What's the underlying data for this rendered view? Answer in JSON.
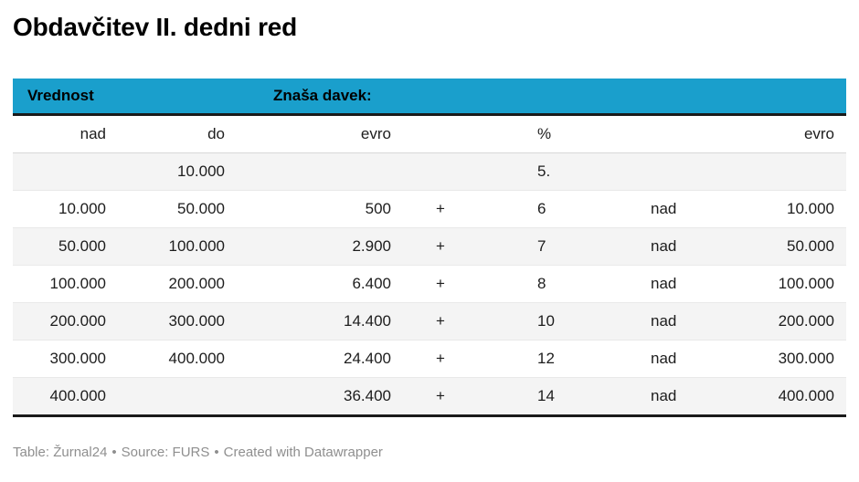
{
  "chart_data": {
    "type": "table",
    "title": "Obdavčitev II. dedni red",
    "group_headers": [
      {
        "label": "Vrednost",
        "colspan": 2
      },
      {
        "label": "Znaša davek:",
        "colspan": 5
      }
    ],
    "columns": [
      "nad",
      "do",
      "evro",
      "",
      "%",
      "",
      "evro"
    ],
    "rows": [
      [
        "",
        "10.000",
        "",
        "",
        "5.",
        "",
        ""
      ],
      [
        "10.000",
        "50.000",
        "500",
        "+",
        "6",
        "nad",
        "10.000"
      ],
      [
        "50.000",
        "100.000",
        "2.900",
        "+",
        "7",
        "nad",
        "50.000"
      ],
      [
        "100.000",
        "200.000",
        "6.400",
        "+",
        "8",
        "nad",
        "100.000"
      ],
      [
        "200.000",
        "300.000",
        "14.400",
        "+",
        "10",
        "nad",
        "200.000"
      ],
      [
        "300.000",
        "400.000",
        "24.400",
        "+",
        "12",
        "nad",
        "300.000"
      ],
      [
        "400.000",
        "",
        "36.400",
        "+",
        "14",
        "nad",
        "400.000"
      ]
    ],
    "layout_hints": {
      "zebra_striping": true,
      "first_stripe": "gray",
      "thick_rule_under_group_header": true,
      "thick_rule_at_bottom": true
    }
  },
  "colors": {
    "header_bg": "#1a9fcc",
    "header_text": "#000000",
    "body_text": "#1d1d1d",
    "stripe_row": "#f4f4f4",
    "row_divider": "#e9e9e9",
    "thick_rule": "#1a1a1a",
    "footer_text": "#8f8f8f"
  },
  "footer": {
    "table_label": "Table: ",
    "table_source": "Žurnal24",
    "separator": "•",
    "source_label": "Source: ",
    "source": "FURS",
    "created_label": "Created with ",
    "tool": "Datawrapper"
  }
}
